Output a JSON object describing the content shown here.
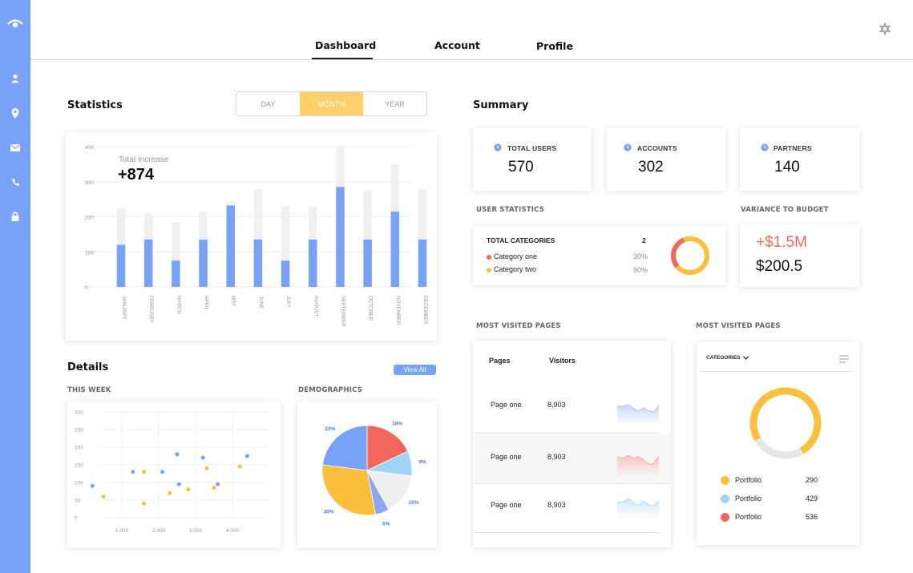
{
  "nav": {
    "tabs": [
      "Dashboard",
      "Account",
      "Profile"
    ],
    "active_tab": "Dashboard"
  },
  "sidebar": {
    "logo_icon": "eye-logo-icon",
    "icons": [
      "user-icon",
      "location-pin-icon",
      "mail-icon",
      "phone-icon",
      "lock-icon"
    ]
  },
  "statistics": {
    "title": "Statistics",
    "periods": [
      "DAY",
      "MONTH",
      "YEAR"
    ],
    "active_period": "MONTH",
    "total_label": "Total Increase",
    "total_value": "+874"
  },
  "details": {
    "title": "Details",
    "view_all": "View All",
    "this_week": "THIS WEEK",
    "demographics": "DEMOGRAPHICS"
  },
  "summary": {
    "title": "Summary",
    "cards": [
      {
        "label": "TOTAL USERS",
        "value": "570"
      },
      {
        "label": "ACCOUNTS",
        "value": "302"
      },
      {
        "label": "PARTNERS",
        "value": "140"
      }
    ],
    "user_statistics": {
      "title": "USER STATISTICS",
      "heading": "TOTAL CATEGORIES",
      "count": "2",
      "rows": [
        {
          "name": "Category one",
          "pct": "30%",
          "color": "#f2665b"
        },
        {
          "name": "Category two",
          "pct": "90%",
          "color": "#fbbf3e"
        }
      ]
    },
    "variance": {
      "title": "VARIANCE TO BUDGET",
      "delta": "+$1.5M",
      "value": "$200.5"
    },
    "visited_table": {
      "title": "MOST VISITED PAGES",
      "headers": [
        "Pages",
        "Visitors"
      ],
      "rows": [
        {
          "page": "Page one",
          "visitors": "8,903"
        },
        {
          "page": "Page one",
          "visitors": "8,903"
        },
        {
          "page": "Page one",
          "visitors": "8,903"
        }
      ]
    },
    "visited_donut": {
      "title": "MOST VISITED PAGES",
      "dropdown": "CATEGORIES",
      "legend": [
        {
          "name": "Portfolio",
          "value": "290",
          "color": "#fbbf3e"
        },
        {
          "name": "Portfolio",
          "value": "429",
          "color": "#9fd3f8"
        },
        {
          "name": "Portfolio",
          "value": "536",
          "color": "#f2665b"
        }
      ]
    }
  },
  "colors": {
    "sidebar": "#78a1f8",
    "accent_blue": "#78a1f8",
    "accent_yellow": "#fdd06c",
    "red": "#f2665b"
  },
  "chart_data": [
    {
      "type": "bar",
      "categories": [
        "JANUARY",
        "FEBRUARY",
        "MARCH",
        "APRIL",
        "MAY",
        "JUNE",
        "JULY",
        "AUGUST",
        "SEPTEMBER",
        "OCTOBER",
        "NOVEMBER",
        "DECEMBER"
      ],
      "series": [
        {
          "values": [
            120,
            135,
            75,
            135,
            232,
            135,
            75,
            135,
            285,
            135,
            215,
            135
          ]
        },
        {
          "values": [
            225,
            210,
            185,
            215,
            245,
            280,
            230,
            230,
            400,
            275,
            350,
            280
          ]
        }
      ],
      "y_ticks": [
        "0",
        "100",
        "200",
        "300",
        "400"
      ],
      "ylim": [
        0,
        400
      ]
    },
    {
      "type": "scatter",
      "x_ticks": [
        "1,000",
        "2,000",
        "3,000",
        "4,000"
      ],
      "y_ticks": [
        "0",
        "50",
        "100",
        "150",
        "200",
        "250",
        "300"
      ],
      "xlim": [
        0,
        5000
      ],
      "ylim": [
        0,
        300
      ],
      "series": [
        {
          "color": "#78a1f8",
          "points": [
            [
              200,
              90
            ],
            [
              1300,
              130
            ],
            [
              2100,
              130
            ],
            [
              2500,
              180
            ],
            [
              2550,
              95
            ],
            [
              3200,
              170
            ],
            [
              3600,
              95
            ],
            [
              4400,
              175
            ]
          ]
        },
        {
          "color": "#fbbf3e",
          "points": [
            [
              500,
              60
            ],
            [
              1600,
              130
            ],
            [
              1600,
              40
            ],
            [
              2300,
              70
            ],
            [
              2800,
              80
            ],
            [
              3300,
              140
            ],
            [
              3500,
              85
            ],
            [
              4200,
              145
            ]
          ]
        }
      ]
    },
    {
      "type": "pie",
      "slices": [
        {
          "label": "18%",
          "value": 18,
          "color": "#f2665b"
        },
        {
          "label": "9%",
          "value": 9,
          "color": "#9fd3f8"
        },
        {
          "label": "15%",
          "value": 15,
          "color": "#efefef"
        },
        {
          "label": "5%",
          "value": 5,
          "color": "#8ea6f2"
        },
        {
          "label": "30%",
          "value": 30,
          "color": "#fbbf3e"
        },
        {
          "label": "23%",
          "value": 23,
          "color": "#78a1f8"
        }
      ]
    },
    {
      "type": "pie",
      "slices": [
        {
          "label": "Category one",
          "value": 30,
          "color": "#f2665b"
        }
      ]
    },
    {
      "type": "pie",
      "slices": [
        {
          "label": "Portfolio",
          "value": 75,
          "color": "#fbbf3e"
        },
        {
          "label": "",
          "value": 25,
          "color": "#e6e6e6"
        }
      ]
    }
  ]
}
